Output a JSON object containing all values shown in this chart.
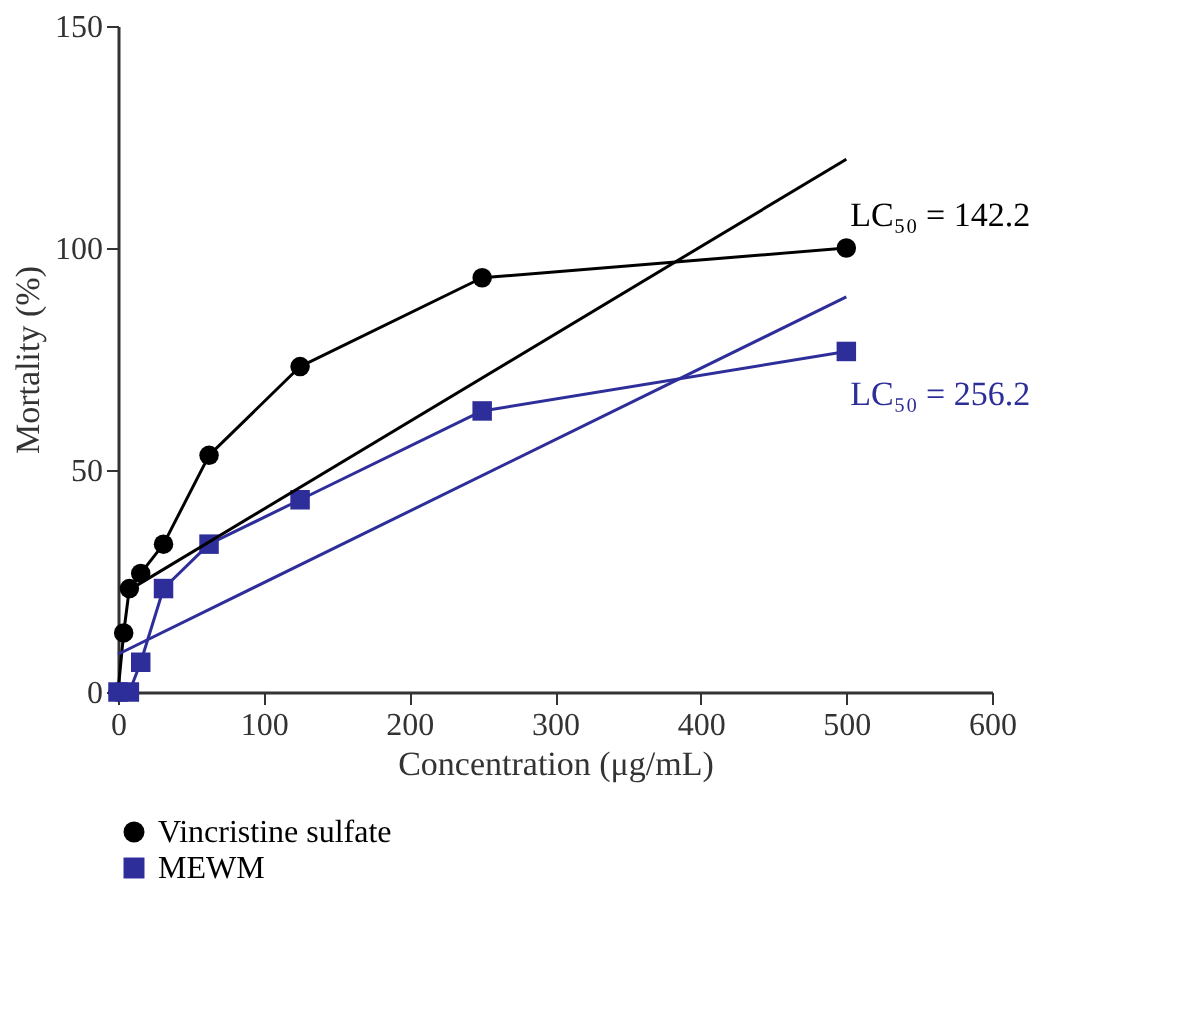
{
  "chart_data": {
    "type": "line",
    "xlabel": "Concentration (μg/mL)",
    "ylabel": "Mortality (%)",
    "xlim": [
      0,
      600
    ],
    "xticks": [
      0,
      100,
      200,
      300,
      400,
      500,
      600
    ],
    "ylim": [
      0,
      150
    ],
    "yticks": [
      0,
      50,
      100,
      150
    ],
    "grid": false,
    "legend": "bottom",
    "series": [
      {
        "name": "Vincristine sulfate",
        "color": "#000000",
        "marker": "circle",
        "x": [
          0,
          3.9,
          7.8,
          15.6,
          31.25,
          62.5,
          125,
          250,
          500
        ],
        "values": [
          0,
          13.3,
          23.3,
          26.7,
          33.3,
          53.3,
          73.3,
          93.3,
          100
        ]
      },
      {
        "name": "MEWM",
        "color": "#2e2e9a",
        "marker": "square",
        "x": [
          0,
          7.8,
          15.6,
          31.25,
          62.5,
          125,
          250,
          500
        ],
        "values": [
          0,
          0,
          6.7,
          23.3,
          33.3,
          43.3,
          63.3,
          76.7
        ]
      },
      {
        "color": "#000000",
        "marker": "none",
        "x": [
          7.8,
          500
        ],
        "values": [
          23,
          120
        ]
      },
      {
        "color": "#2e2e9a",
        "marker": "none",
        "x": [
          0,
          500
        ],
        "values": [
          8.5,
          89
        ]
      }
    ],
    "annotations": [
      "LC₅₀ = 142.2",
      "LC₅₀ = 256.2"
    ]
  }
}
